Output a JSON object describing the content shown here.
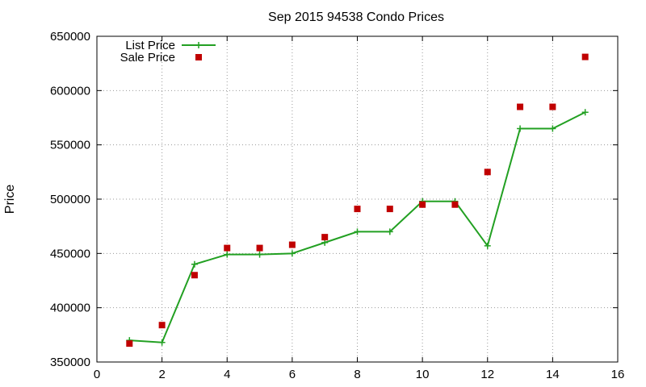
{
  "chart_data": {
    "type": "line",
    "title": "Sep 2015 94538 Condo Prices",
    "xlabel": "",
    "ylabel": "Price",
    "xlim": [
      0,
      16
    ],
    "ylim": [
      350000,
      650000
    ],
    "x_ticks": [
      "0",
      "2",
      "4",
      "6",
      "8",
      "10",
      "12",
      "14",
      "16"
    ],
    "y_ticks": [
      "350000",
      "400000",
      "450000",
      "500000",
      "550000",
      "600000",
      "650000"
    ],
    "grid": true,
    "legend_position": "top-left",
    "series": [
      {
        "name": "List Price",
        "style": "line-with-plus-markers",
        "color": "#22a022",
        "x": [
          1,
          2,
          3,
          4,
          5,
          6,
          7,
          8,
          9,
          10,
          11,
          12,
          13,
          14,
          15
        ],
        "values": [
          370000,
          368000,
          440000,
          449000,
          449000,
          450000,
          460000,
          470000,
          470000,
          498000,
          498000,
          457000,
          565000,
          565000,
          580000
        ]
      },
      {
        "name": "Sale Price",
        "style": "square-markers",
        "color": "#c00000",
        "x": [
          1,
          2,
          3,
          4,
          5,
          6,
          7,
          8,
          9,
          10,
          11,
          12,
          13,
          14,
          15
        ],
        "values": [
          367000,
          384000,
          430000,
          455000,
          455000,
          458000,
          465000,
          491000,
          491000,
          495000,
          495000,
          525000,
          585000,
          585000,
          631000
        ]
      }
    ]
  }
}
